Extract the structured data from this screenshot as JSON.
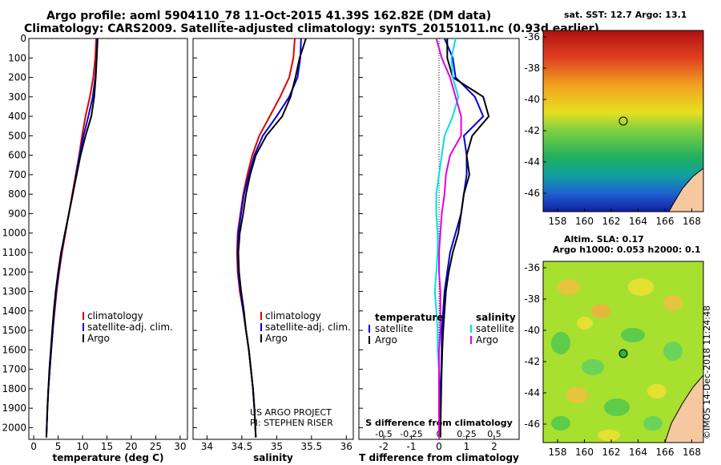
{
  "header": {
    "line1": "Argo profile: aoml 5904110_78 11-Oct-2015 41.39S 162.82E (DM data)",
    "line2": "Climatology: CARS2009. Satellite-adjusted climatology: synTS_20151011.nc (0.93d earlier)"
  },
  "colors": {
    "climatology": "#e00000",
    "satellite": "#0000e0",
    "argo": "#000000",
    "sat_salinity": "#00e0e0",
    "argo_salinity": "#e000e0"
  },
  "chart_data": [
    {
      "type": "line",
      "id": "temperature",
      "xlabel": "temperature (deg C)",
      "xlim": [
        -1,
        31.5
      ],
      "ylim": [
        2060,
        0
      ],
      "xticks": [
        0,
        5,
        10,
        15,
        20,
        25,
        30
      ],
      "yticks": [
        0,
        100,
        200,
        300,
        400,
        500,
        600,
        700,
        800,
        900,
        1000,
        1100,
        1200,
        1300,
        1400,
        1500,
        1600,
        1700,
        1800,
        1900,
        2000
      ],
      "legend": [
        "climatology",
        "satellite-adj. clim.",
        "Argo"
      ],
      "series": [
        {
          "name": "climatology",
          "color": "#e00000",
          "x": [
            12.8,
            12.6,
            12.2,
            11.5,
            10.6,
            9.9,
            9.3,
            8.6,
            7.9,
            7.2,
            6.5,
            5.8,
            5.2,
            4.7,
            4.3,
            3.9,
            3.6,
            3.3,
            3.0,
            2.8,
            2.6
          ],
          "y": [
            0,
            100,
            200,
            300,
            400,
            500,
            600,
            700,
            800,
            900,
            1000,
            1100,
            1200,
            1300,
            1400,
            1500,
            1600,
            1700,
            1800,
            1900,
            2050
          ]
        },
        {
          "name": "satellite-adj. clim.",
          "color": "#0000e0",
          "x": [
            13.0,
            12.9,
            12.6,
            12.1,
            11.2,
            10.2,
            9.4,
            8.7,
            8.0,
            7.2,
            6.4,
            5.7,
            5.1,
            4.6,
            4.2,
            3.9,
            3.6,
            3.3,
            3.0,
            2.8,
            2.6
          ],
          "y": [
            0,
            100,
            200,
            300,
            400,
            500,
            600,
            700,
            800,
            900,
            1000,
            1100,
            1200,
            1300,
            1400,
            1500,
            1600,
            1700,
            1800,
            1900,
            2050
          ]
        },
        {
          "name": "Argo",
          "color": "#000000",
          "x": [
            13.1,
            12.9,
            12.7,
            12.4,
            11.8,
            10.6,
            9.6,
            8.8,
            8.0,
            7.2,
            6.4,
            5.6,
            5.0,
            4.5,
            4.1,
            3.8,
            3.5,
            3.2,
            3.0,
            2.8,
            2.6
          ],
          "y": [
            0,
            100,
            200,
            300,
            400,
            500,
            600,
            700,
            800,
            900,
            1000,
            1100,
            1200,
            1300,
            1400,
            1500,
            1600,
            1700,
            1800,
            1900,
            2050
          ]
        }
      ]
    },
    {
      "type": "line",
      "id": "salinity",
      "xlabel": "salinity",
      "xlim": [
        33.8,
        36.1
      ],
      "ylim": [
        2060,
        0
      ],
      "xticks": [
        34,
        34.5,
        35,
        35.5,
        36
      ],
      "legend": [
        "climatology",
        "satellite-adj. clim.",
        "Argo"
      ],
      "series": [
        {
          "name": "climatology",
          "color": "#e00000",
          "x": [
            35.26,
            35.24,
            35.18,
            35.05,
            34.9,
            34.75,
            34.65,
            34.58,
            34.52,
            34.48,
            34.44,
            34.43,
            34.44,
            34.47,
            34.52,
            34.56,
            34.6,
            34.63,
            34.66,
            34.68,
            34.7
          ],
          "y": [
            0,
            100,
            200,
            300,
            400,
            500,
            600,
            700,
            800,
            900,
            1000,
            1100,
            1200,
            1300,
            1400,
            1500,
            1600,
            1700,
            1800,
            1900,
            2050
          ]
        },
        {
          "name": "satellite-adj. clim.",
          "color": "#0000e0",
          "x": [
            35.35,
            35.34,
            35.3,
            35.18,
            35.0,
            34.8,
            34.68,
            34.6,
            34.53,
            34.49,
            34.45,
            34.44,
            34.45,
            34.48,
            34.52,
            34.56,
            34.6,
            34.63,
            34.66,
            34.68,
            34.7
          ],
          "y": [
            0,
            100,
            200,
            300,
            400,
            500,
            600,
            700,
            800,
            900,
            1000,
            1100,
            1200,
            1300,
            1400,
            1500,
            1600,
            1700,
            1800,
            1900,
            2050
          ]
        },
        {
          "name": "Argo",
          "color": "#000000",
          "x": [
            35.42,
            35.33,
            35.27,
            35.2,
            35.08,
            34.85,
            34.7,
            34.62,
            34.56,
            34.52,
            34.47,
            34.45,
            34.46,
            34.49,
            34.53,
            34.56,
            34.6,
            34.63,
            34.66,
            34.68,
            34.7
          ],
          "y": [
            0,
            100,
            200,
            300,
            400,
            500,
            600,
            700,
            800,
            900,
            1000,
            1100,
            1200,
            1300,
            1400,
            1500,
            1600,
            1700,
            1800,
            1900,
            2050
          ]
        }
      ],
      "annotation": [
        "US ARGO PROJECT",
        "PI: STEPHEN RISER"
      ]
    },
    {
      "type": "line",
      "id": "difference",
      "xlabel": "T difference from climatology",
      "x2label": "S difference from climatology",
      "xlim": [
        -2.9,
        2.9
      ],
      "ylim": [
        2060,
        0
      ],
      "xticks": [
        -2,
        -1,
        0,
        1,
        2
      ],
      "x2ticks": [
        -0.5,
        -0.25,
        0,
        0.25,
        0.5
      ],
      "x2tick_labels": [
        "-0.5",
        "-0.25",
        "0",
        "0.25",
        "0.5"
      ],
      "x2scale": 4,
      "legend_temperature": {
        "title": "temperature",
        "items": [
          "satellite",
          "Argo"
        ]
      },
      "legend_salinity": {
        "title": "salinity",
        "items": [
          "satellite",
          "Argo"
        ]
      },
      "series": [
        {
          "name": "satellite",
          "group": "temperature",
          "color": "#0000e0",
          "x": [
            0.2,
            0.5,
            0.6,
            1.3,
            1.6,
            0.9,
            1.0,
            1.0,
            0.9,
            0.8,
            0.6,
            0.4,
            0.3,
            0.2,
            0.15,
            0.1,
            0.1,
            0.08,
            0.05,
            0.05
          ],
          "y": [
            0,
            100,
            200,
            300,
            400,
            500,
            600,
            700,
            800,
            900,
            1000,
            1100,
            1200,
            1300,
            1400,
            1500,
            1600,
            1700,
            1800,
            2050
          ]
        },
        {
          "name": "Argo",
          "group": "temperature",
          "color": "#000000",
          "x": [
            0.3,
            0.3,
            0.5,
            1.6,
            1.8,
            1.2,
            1.0,
            1.1,
            0.9,
            0.8,
            0.7,
            0.5,
            0.35,
            0.25,
            0.2,
            0.15,
            0.12,
            0.1,
            0.08,
            0.05
          ],
          "y": [
            0,
            100,
            200,
            300,
            400,
            500,
            600,
            700,
            800,
            900,
            1000,
            1100,
            1200,
            1300,
            1400,
            1500,
            1600,
            1700,
            1800,
            2050
          ]
        },
        {
          "name": "satellite",
          "group": "salinity",
          "color": "#00e0e0",
          "x": [
            0.6,
            0.45,
            0.5,
            0.7,
            0.5,
            0.2,
            0.1,
            0.0,
            -0.1,
            -0.1,
            -0.05,
            -0.05,
            -0.1,
            -0.15,
            -0.1,
            -0.05,
            -0.05,
            0.0,
            0.0,
            0.0
          ],
          "y": [
            0,
            100,
            200,
            300,
            400,
            500,
            600,
            700,
            800,
            900,
            1000,
            1100,
            1200,
            1300,
            1400,
            1500,
            1600,
            1700,
            1800,
            2050
          ]
        },
        {
          "name": "Argo",
          "group": "salinity",
          "color": "#e000e0",
          "x": [
            -0.1,
            0.1,
            0.4,
            0.6,
            0.8,
            0.8,
            0.4,
            0.25,
            0.2,
            0.1,
            0.05,
            0.0,
            0.0,
            0.05,
            0.05,
            0.05,
            0.0,
            0.0,
            0.0,
            0.0
          ],
          "y": [
            0,
            100,
            200,
            300,
            400,
            500,
            600,
            700,
            800,
            900,
            1000,
            1100,
            1200,
            1300,
            1400,
            1500,
            1600,
            1700,
            1800,
            2050
          ]
        }
      ]
    }
  ],
  "maps": {
    "sst": {
      "title": "sat. SST: 12.7 Argo: 13.1",
      "xticks": [
        "158",
        "160",
        "162",
        "164",
        "166",
        "168"
      ],
      "yticks": [
        "-36",
        "-38",
        "-40",
        "-42",
        "-44",
        "-46"
      ],
      "profile_lon": 162.82,
      "profile_lat": -41.39
    },
    "sla": {
      "title_line1": "Altim. SLA: 0.17",
      "title_line2": "Argo h1000: 0.053 h2000: 0.1",
      "xticks": [
        "158",
        "160",
        "162",
        "164",
        "166",
        "168"
      ],
      "yticks": [
        "-36",
        "-38",
        "-40",
        "-42",
        "-44",
        "-46"
      ],
      "profile_lon": 162.82,
      "profile_lat": -41.39
    }
  },
  "credit": "©IMOS 14-Dec-2018 11:24:48"
}
